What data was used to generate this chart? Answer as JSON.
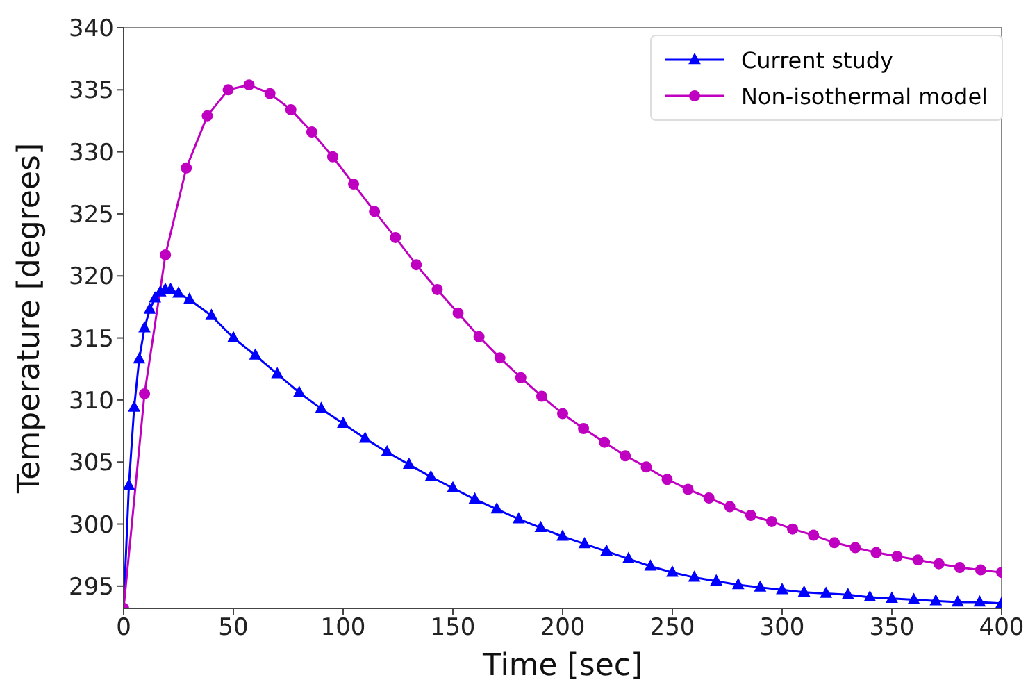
{
  "chart_data": {
    "type": "line",
    "xlabel": "Time [sec]",
    "ylabel": "Temperature [degrees]",
    "xlim": [
      0,
      400
    ],
    "xticks": [
      0,
      50,
      100,
      150,
      200,
      250,
      300,
      350,
      400
    ],
    "ylim": [
      293.2,
      340
    ],
    "yticks": [
      295,
      300,
      305,
      310,
      315,
      320,
      325,
      330,
      335,
      340
    ],
    "grid": false,
    "legend": "top right",
    "line_style": "solid",
    "series": [
      {
        "name": "Current study",
        "color": "#0000ff",
        "marker": "triangle",
        "x": [
          0,
          2.4,
          4.8,
          7.1,
          9.5,
          11.9,
          14.3,
          16.7,
          19,
          21.4,
          25,
          30,
          40,
          50,
          60,
          70,
          80,
          90,
          100,
          110,
          120,
          130,
          140,
          150,
          160,
          170,
          180,
          190,
          200,
          210,
          220,
          230,
          240,
          250,
          260,
          270,
          280,
          290,
          300,
          310,
          320,
          330,
          340,
          350,
          360,
          370,
          380,
          390,
          400
        ],
        "values": [
          293.2,
          303.1,
          309.4,
          313.3,
          315.8,
          317.3,
          318.2,
          318.7,
          318.9,
          318.9,
          318.6,
          318.1,
          316.8,
          315.0,
          313.6,
          312.1,
          310.6,
          309.3,
          308.1,
          306.9,
          305.8,
          304.8,
          303.8,
          302.9,
          302.0,
          301.2,
          300.4,
          299.7,
          299.0,
          298.4,
          297.8,
          297.2,
          296.6,
          296.1,
          295.7,
          295.4,
          295.1,
          294.9,
          294.7,
          294.5,
          294.4,
          294.3,
          294.1,
          294.0,
          293.9,
          293.8,
          293.7,
          293.7,
          293.6
        ]
      },
      {
        "name": "Non-isothermal model",
        "color": "#c000c0",
        "marker": "circle",
        "x": [
          0,
          9.52,
          19.05,
          28.57,
          38.1,
          47.62,
          57.14,
          66.67,
          76.19,
          85.71,
          95.24,
          104.76,
          114.29,
          123.81,
          133.33,
          142.86,
          152.38,
          161.9,
          171.43,
          180.95,
          190.48,
          200,
          209.52,
          219.05,
          228.57,
          238.1,
          247.62,
          257.14,
          266.67,
          276.19,
          285.71,
          295.24,
          304.76,
          314.29,
          323.81,
          333.33,
          342.86,
          352.38,
          361.9,
          371.43,
          380.95,
          390.48,
          400
        ],
        "values": [
          293.2,
          310.5,
          321.7,
          328.7,
          332.9,
          335.0,
          335.4,
          334.7,
          333.4,
          331.6,
          329.6,
          327.4,
          325.2,
          323.1,
          320.9,
          318.9,
          317.0,
          315.1,
          313.4,
          311.8,
          310.3,
          308.9,
          307.7,
          306.6,
          305.5,
          304.6,
          303.6,
          302.8,
          302.1,
          301.4,
          300.7,
          300.2,
          299.6,
          299.1,
          298.5,
          298.1,
          297.7,
          297.4,
          297.1,
          296.8,
          296.5,
          296.3,
          296.1
        ]
      }
    ]
  }
}
